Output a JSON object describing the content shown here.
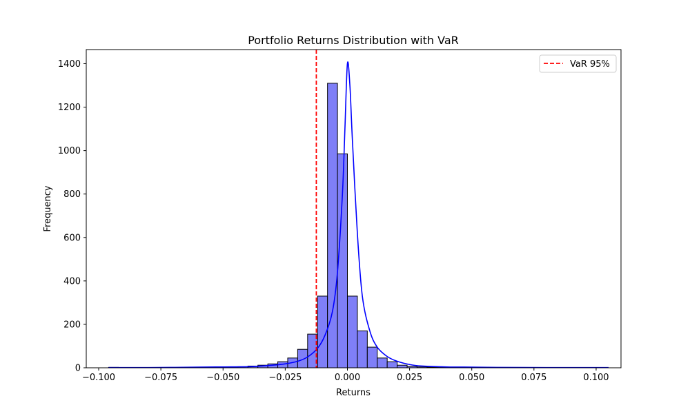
{
  "chart_data": {
    "type": "histogram",
    "title": "Portfolio Returns Distribution with VaR",
    "xlabel": "Returns",
    "ylabel": "Frequency",
    "xlim": [
      -0.105,
      0.11
    ],
    "ylim": [
      0,
      1465
    ],
    "x_ticks": [
      -0.1,
      -0.075,
      -0.05,
      -0.025,
      0.0,
      0.025,
      0.05,
      0.075,
      0.1
    ],
    "x_tick_labels": [
      "−0.100",
      "−0.075",
      "−0.050",
      "−0.025",
      "0.000",
      "0.025",
      "0.050",
      "0.075",
      "0.100"
    ],
    "y_ticks": [
      0,
      200,
      400,
      600,
      800,
      1000,
      1200,
      1400
    ],
    "y_tick_labels": [
      "0",
      "200",
      "400",
      "600",
      "800",
      "1000",
      "1200",
      "1400"
    ],
    "grid": false,
    "bins": {
      "start": -0.096,
      "width": 0.004,
      "counts": [
        2,
        1,
        1,
        1,
        1,
        1,
        1,
        1,
        1,
        2,
        2,
        3,
        4,
        5,
        8,
        12,
        18,
        28,
        45,
        85,
        155,
        330,
        1310,
        985,
        330,
        170,
        95,
        45,
        28,
        12,
        6,
        4,
        3,
        2,
        2,
        2,
        1,
        1,
        1,
        1,
        1,
        1,
        1,
        1,
        1,
        1,
        1,
        1,
        1,
        1
      ]
    },
    "kde": {
      "x": [
        -0.096,
        -0.08,
        -0.06,
        -0.05,
        -0.04,
        -0.035,
        -0.03,
        -0.025,
        -0.02,
        -0.016,
        -0.012,
        -0.009,
        -0.006,
        -0.004,
        -0.002,
        -0.001,
        0.0,
        0.001,
        0.002,
        0.004,
        0.006,
        0.009,
        0.012,
        0.016,
        0.02,
        0.025,
        0.03,
        0.04,
        0.05,
        0.06,
        0.08,
        0.105
      ],
      "y": [
        1,
        1,
        3,
        4,
        5,
        8,
        12,
        18,
        30,
        50,
        90,
        150,
        260,
        440,
        800,
        1100,
        1400,
        1300,
        1050,
        620,
        330,
        170,
        95,
        52,
        30,
        15,
        8,
        4,
        3,
        2,
        1,
        1
      ]
    },
    "bar_color": "#7f7ff7",
    "bar_edge_color": "#000000",
    "kde_color": "#0000ff",
    "var_line": {
      "value": -0.0125,
      "color": "#ff0000",
      "style": "dashed"
    },
    "legend": {
      "position": "top-right",
      "entries": [
        "VaR 95%"
      ]
    }
  }
}
